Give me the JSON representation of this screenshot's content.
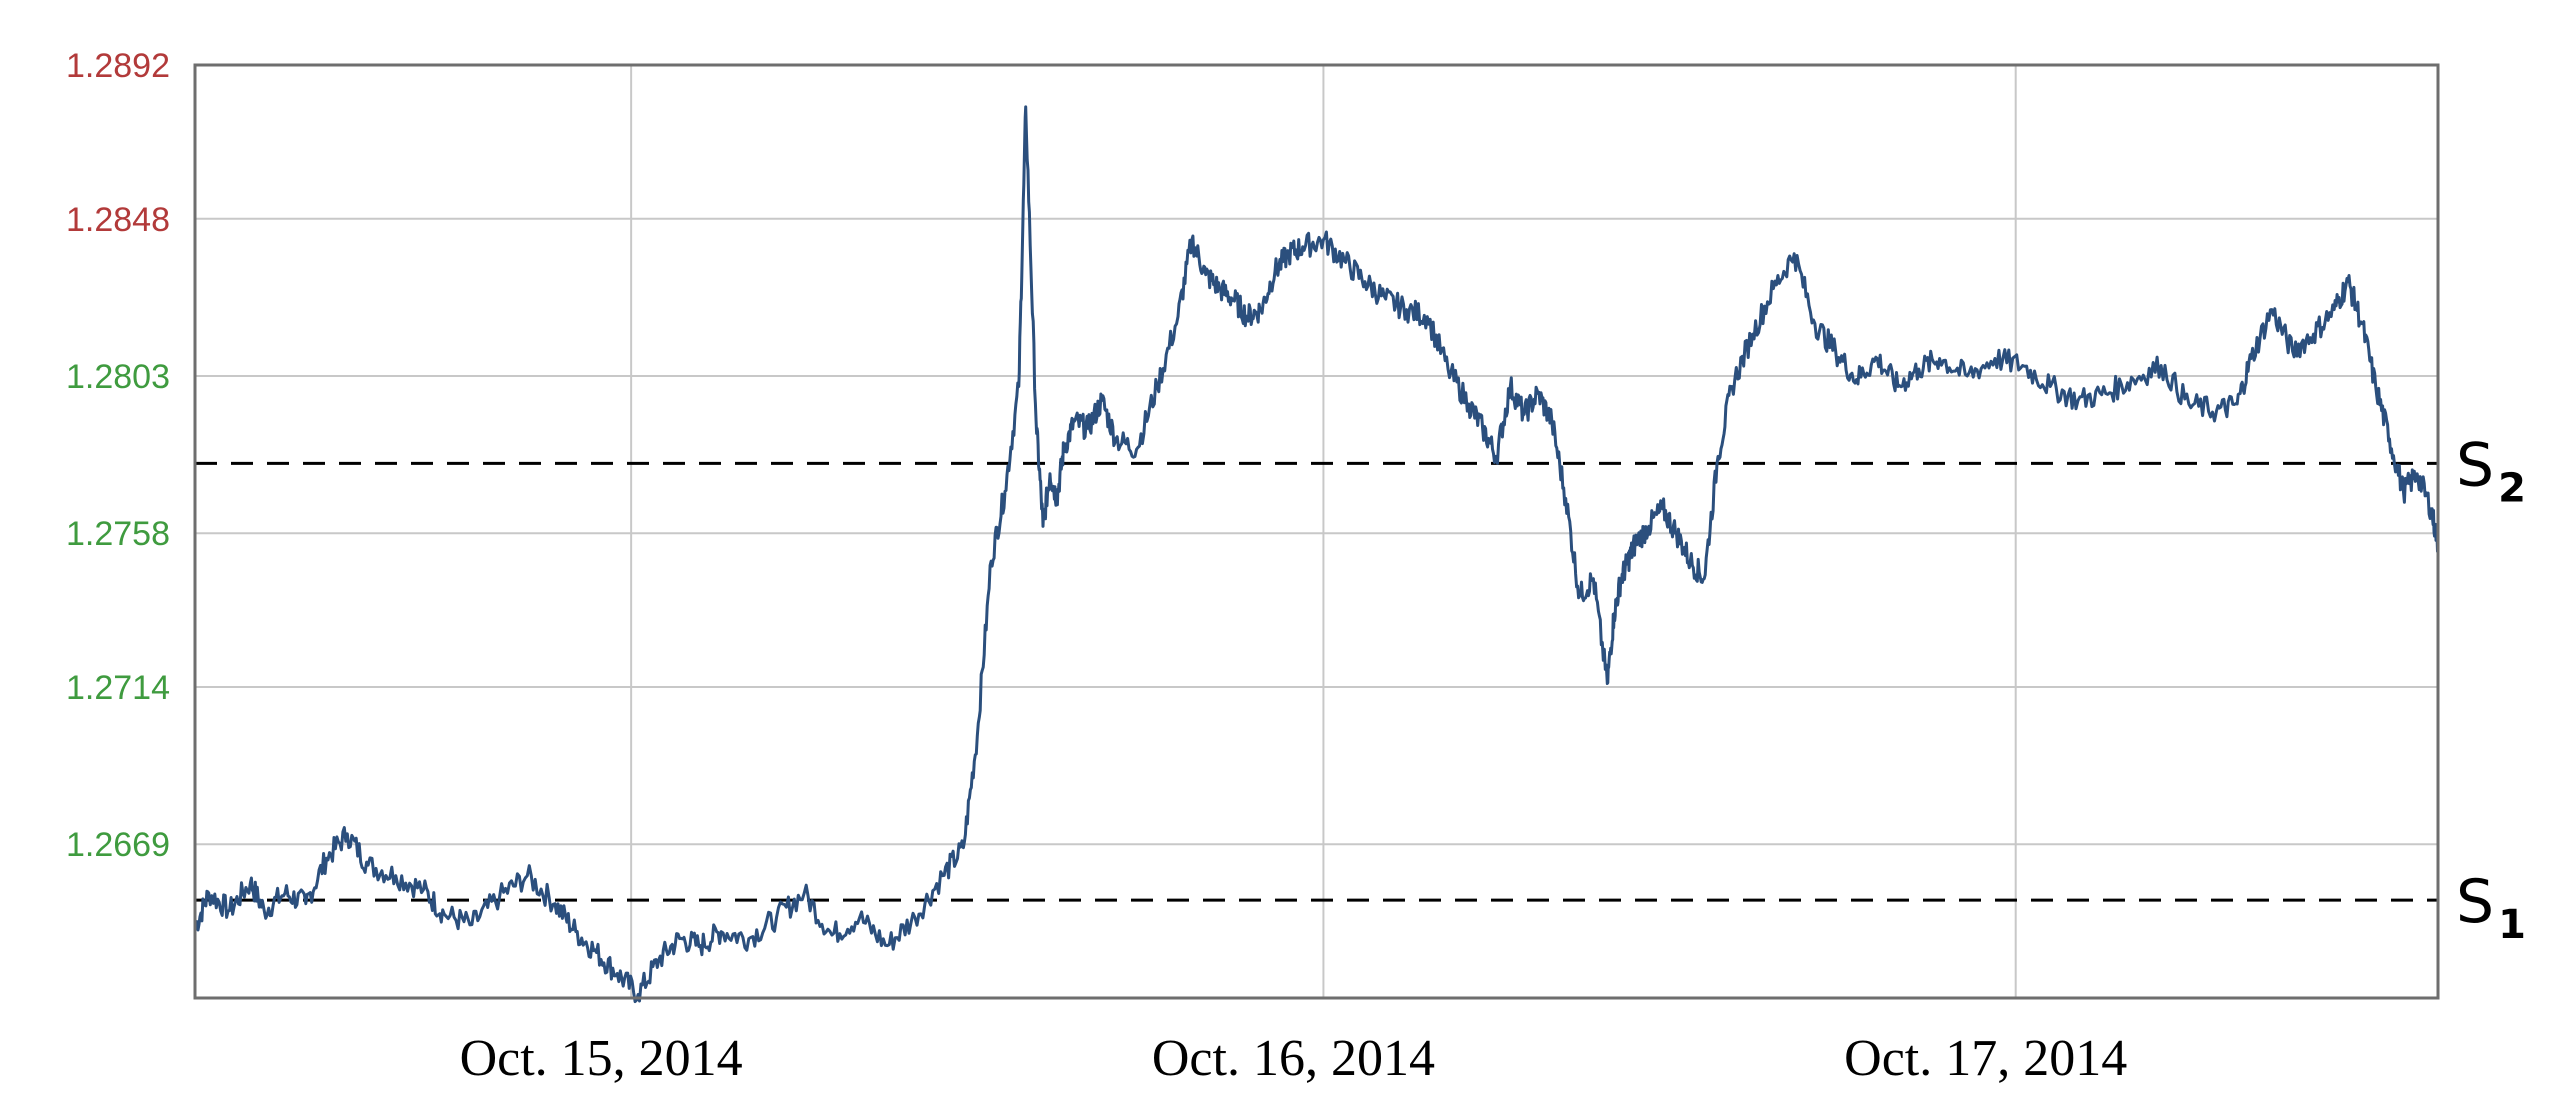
{
  "chart_data": {
    "type": "line",
    "title": "",
    "xlabel": "",
    "ylabel": "",
    "x_range": [
      0,
      3.24
    ],
    "ylim": [
      1.2625,
      1.2892
    ],
    "grid": true,
    "colors": {
      "line": "#2b4f7d",
      "grid": "#c8c8c8",
      "axis": "#6e6e6e",
      "ytick_red": "#b23a3a",
      "ytick_green": "#3f9b3f",
      "threshold": "#000000"
    },
    "y_ticks": [
      {
        "value": 1.2892,
        "label": "1.2892",
        "color": "red"
      },
      {
        "value": 1.2848,
        "label": "1.2848",
        "color": "red"
      },
      {
        "value": 1.2803,
        "label": "1.2803",
        "color": "green"
      },
      {
        "value": 1.2758,
        "label": "1.2758",
        "color": "green"
      },
      {
        "value": 1.2714,
        "label": "1.2714",
        "color": "green"
      },
      {
        "value": 1.2669,
        "label": "1.2669",
        "color": "green"
      }
    ],
    "x_ticks": [
      {
        "x": 0.63,
        "label": "Oct. 15, 2014"
      },
      {
        "x": 1.63,
        "label": "Oct. 16, 2014"
      },
      {
        "x": 2.63,
        "label": "Oct. 17, 2014"
      }
    ],
    "thresholds": [
      {
        "label": "S",
        "sub": "2",
        "value": 1.2778
      },
      {
        "label": "S",
        "sub": "1",
        "value": 1.2653
      }
    ],
    "series": [
      {
        "x": [
          0.0,
          0.02,
          0.05,
          0.08,
          0.1,
          0.13,
          0.16,
          0.19,
          0.22,
          0.25,
          0.29,
          0.33,
          0.36,
          0.4,
          0.44,
          0.48,
          0.52,
          0.55,
          0.58,
          0.61,
          0.64,
          0.67,
          0.7,
          0.73,
          0.76,
          0.8,
          0.84,
          0.88,
          0.92,
          0.96,
          1.0,
          1.04,
          1.08,
          1.11,
          1.13,
          1.15,
          1.17,
          1.19,
          1.2,
          1.215,
          1.225,
          1.235,
          1.245,
          1.255,
          1.27,
          1.29,
          1.31,
          1.33,
          1.36,
          1.39,
          1.42,
          1.44,
          1.46,
          1.48,
          1.5,
          1.52,
          1.54,
          1.56,
          1.58,
          1.6,
          1.63,
          1.66,
          1.69,
          1.72,
          1.75,
          1.78,
          1.81,
          1.84,
          1.86,
          1.88,
          1.9,
          1.92,
          1.94,
          1.96,
          1.98,
          2.0,
          2.02,
          2.04,
          2.05,
          2.06,
          2.07,
          2.08,
          2.1,
          2.12,
          2.14,
          2.16,
          2.18,
          2.2,
          2.22,
          2.25,
          2.28,
          2.31,
          2.34,
          2.37,
          2.4,
          2.43,
          2.46,
          2.49,
          2.52,
          2.56,
          2.6,
          2.64,
          2.68,
          2.72,
          2.76,
          2.8,
          2.84,
          2.88,
          2.92,
          2.95,
          2.97,
          3.0,
          3.03,
          3.06,
          3.09,
          3.11,
          3.13,
          3.15,
          3.17,
          3.19,
          3.21,
          3.23,
          3.24
        ],
        "y": [
          1.2645,
          1.2655,
          1.265,
          1.2658,
          1.265,
          1.2655,
          1.2652,
          1.2665,
          1.2672,
          1.2663,
          1.266,
          1.2656,
          1.2649,
          1.2646,
          1.2654,
          1.266,
          1.2652,
          1.2644,
          1.2638,
          1.2632,
          1.2626,
          1.2636,
          1.2642,
          1.264,
          1.2644,
          1.2642,
          1.2648,
          1.2655,
          1.2643,
          1.2648,
          1.264,
          1.2648,
          1.266,
          1.2668,
          1.27,
          1.275,
          1.277,
          1.28,
          1.288,
          1.279,
          1.276,
          1.2775,
          1.2768,
          1.2782,
          1.279,
          1.2788,
          1.2796,
          1.2785,
          1.2782,
          1.28,
          1.282,
          1.2842,
          1.2832,
          1.2828,
          1.2825,
          1.282,
          1.2822,
          1.2833,
          1.2838,
          1.284,
          1.2842,
          1.2836,
          1.283,
          1.2825,
          1.2822,
          1.282,
          1.2805,
          1.2795,
          1.2788,
          1.278,
          1.28,
          1.2792,
          1.2798,
          1.279,
          1.2768,
          1.274,
          1.2745,
          1.2715,
          1.2735,
          1.2745,
          1.275,
          1.2755,
          1.276,
          1.2765,
          1.2758,
          1.275,
          1.2745,
          1.278,
          1.28,
          1.2815,
          1.2828,
          1.2838,
          1.2818,
          1.281,
          1.2802,
          1.2808,
          1.28,
          1.2805,
          1.2808,
          1.2803,
          1.2808,
          1.2806,
          1.28,
          1.2796,
          1.2798,
          1.2802,
          1.2806,
          1.2795,
          1.2793,
          1.2795,
          1.2808,
          1.2822,
          1.281,
          1.2815,
          1.2822,
          1.283,
          1.2818,
          1.28,
          1.2785,
          1.277,
          1.2775,
          1.2765,
          1.2755
        ]
      }
    ]
  }
}
